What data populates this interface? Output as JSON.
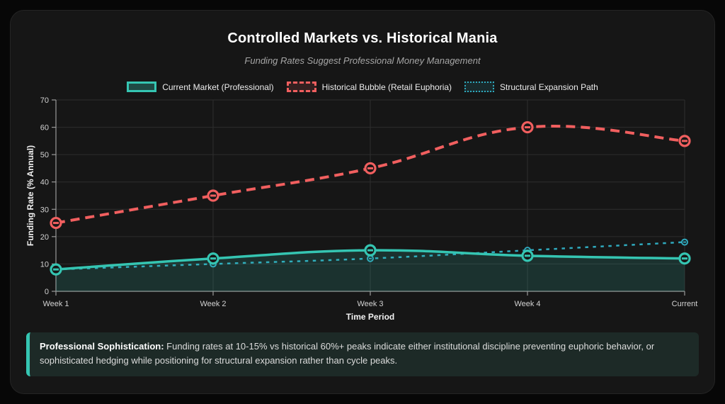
{
  "page": {
    "title": "Controlled Markets vs. Historical Mania",
    "subtitle": "Funding Rates Suggest Professional Money Management"
  },
  "chart_data": {
    "type": "line",
    "title": "Controlled Markets vs. Historical Mania",
    "subtitle": "Funding Rates Suggest Professional Money Management",
    "categories": [
      "Week 1",
      "Week 2",
      "Week 3",
      "Week 4",
      "Current"
    ],
    "xlabel": "Time Period",
    "ylabel": "Funding Rate (% Annual)",
    "ylim": [
      0,
      70
    ],
    "yticks": [
      0,
      10,
      20,
      30,
      40,
      50,
      60,
      70
    ],
    "grid": true,
    "legend_position": "top",
    "series": [
      {
        "name": "Current Market (Professional)",
        "values": [
          8,
          12,
          15,
          13,
          12
        ],
        "color": "#35c5b2",
        "style": "solid",
        "fill": true
      },
      {
        "name": "Historical Bubble (Retail Euphoria)",
        "values": [
          25,
          35,
          45,
          60,
          55
        ],
        "color": "#f15f5f",
        "style": "dashed",
        "fill": false
      },
      {
        "name": "Structural Expansion Path",
        "values": [
          8,
          10,
          12,
          15,
          18
        ],
        "color": "#2fa9bd",
        "style": "dotted",
        "fill": false
      }
    ]
  },
  "callout": {
    "heading": "Professional Sophistication:",
    "body": " Funding rates at 10-15% vs historical 60%+ peaks indicate either institutional discipline preventing euphoric behavior, or sophisticated hedging while positioning for structural expansion rather than cycle peaks."
  },
  "colors": {
    "page_bg": "#070707",
    "card_bg": "#161616",
    "grid": "#2e2e2e",
    "axis": "#9a9a9a",
    "tick_text": "#d2d2d2",
    "axis_title_text": "#f2f2f2",
    "area_fill": "rgba(53,197,178,0.16)",
    "callout_bg": "#1d2a27",
    "accent": "#35c5b2"
  }
}
